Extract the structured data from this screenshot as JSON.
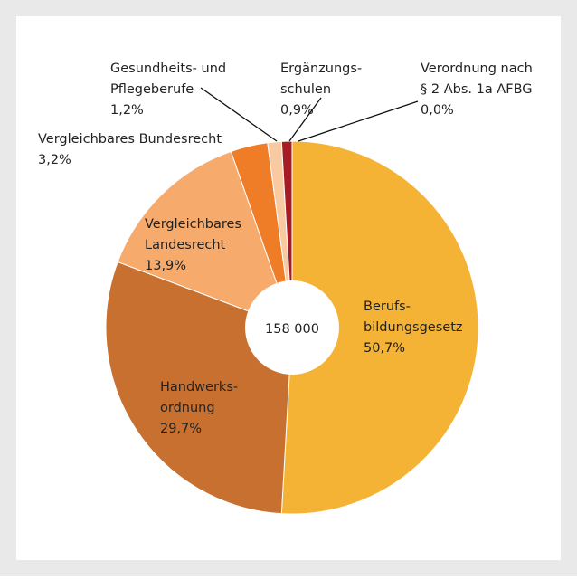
{
  "chart_data": {
    "type": "pie",
    "categories": [
      [
        "Berufs-",
        "bildungsgesetz"
      ],
      [
        "Handwerks-",
        "ordnung"
      ],
      [
        "Vergleichbares",
        "Landesrecht"
      ],
      [
        "Vergleichbares Bundesrecht"
      ],
      [
        "Gesundheits- und",
        "Pflegeberufe"
      ],
      [
        "Ergänzungs-",
        "schulen"
      ],
      [
        "Verordnung nach",
        "§ 2 Abs. 1a AFBG"
      ]
    ],
    "values": [
      50.7,
      29.7,
      13.9,
      3.2,
      1.2,
      0.9,
      0.0
    ],
    "value_labels": [
      "50,7%",
      "29,7%",
      "13,9%",
      "3,2%",
      "1,2%",
      "0,9%",
      "0,0%"
    ],
    "colors": [
      "#f5b335",
      "#c7702f",
      "#f6aa6b",
      "#ef7d27",
      "#f9c9a1",
      "#a51d22",
      "#6b1015"
    ],
    "center_label": "158 000"
  }
}
